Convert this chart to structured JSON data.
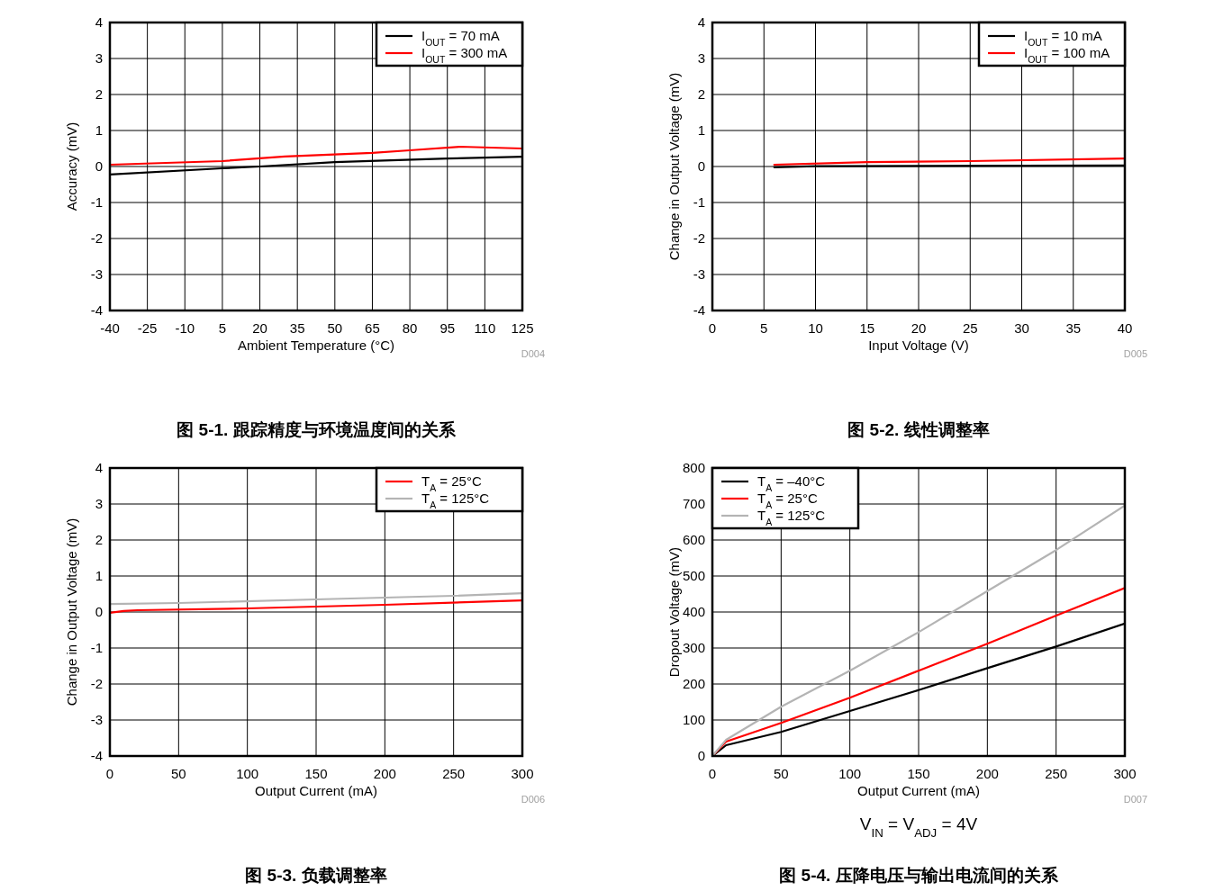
{
  "chart_data": [
    {
      "type": "line",
      "title": "图 5-1. 跟踪精度与环境温度间的关系",
      "xlabel": "Ambient Temperature (°C)",
      "ylabel": "Accuracy (mV)",
      "annotations": [
        "D004"
      ],
      "xlim": [
        -40,
        125
      ],
      "xticks": [
        -40,
        -25,
        -10,
        5,
        20,
        35,
        50,
        65,
        80,
        95,
        110,
        125
      ],
      "ylim": [
        -4,
        4
      ],
      "yticks": [
        -4,
        -3,
        -2,
        -1,
        0,
        1,
        2,
        3,
        4
      ],
      "grid": true,
      "legend": "top right",
      "series": [
        {
          "name": "I$_{OUT}$ = 70 mA",
          "color": "#000000",
          "x": [
            -40,
            5,
            20,
            50,
            95,
            125
          ],
          "values": [
            -0.22,
            -0.05,
            0.0,
            0.12,
            0.22,
            0.27
          ]
        },
        {
          "name": "I$_{OUT}$ = 300 mA",
          "color": "#ff0000",
          "x": [
            -40,
            5,
            30,
            65,
            80,
            100,
            125
          ],
          "values": [
            0.05,
            0.15,
            0.28,
            0.38,
            0.45,
            0.55,
            0.5
          ]
        }
      ]
    },
    {
      "type": "line",
      "title": "图 5-2. 线性调整率",
      "xlabel": "Input Voltage (V)",
      "ylabel": "Change in Output Voltage (mV)",
      "annotations": [
        "D005"
      ],
      "xlim": [
        0,
        40
      ],
      "xticks": [
        0,
        5,
        10,
        15,
        20,
        25,
        30,
        35,
        40
      ],
      "ylim": [
        -4,
        4
      ],
      "yticks": [
        -4,
        -3,
        -2,
        -1,
        0,
        1,
        2,
        3,
        4
      ],
      "grid": true,
      "legend": "top right",
      "series": [
        {
          "name": "I$_{OUT}$ = 10 mA",
          "color": "#000000",
          "x": [
            6,
            10,
            40
          ],
          "values": [
            -0.02,
            0.01,
            0.03
          ]
        },
        {
          "name": "I$_{OUT}$ = 100 mA",
          "color": "#ff0000",
          "x": [
            6,
            15,
            25,
            40
          ],
          "values": [
            0.05,
            0.12,
            0.15,
            0.22
          ]
        }
      ]
    },
    {
      "type": "line",
      "title": "图 5-3. 负载调整率",
      "xlabel": "Output Current (mA)",
      "ylabel": "Change in Output Voltage (mV)",
      "annotations": [
        "D006"
      ],
      "xlim": [
        0,
        300
      ],
      "xticks": [
        0,
        50,
        100,
        150,
        200,
        250,
        300
      ],
      "ylim": [
        -4,
        4
      ],
      "yticks": [
        -4,
        -3,
        -2,
        -1,
        0,
        1,
        2,
        3,
        4
      ],
      "grid": true,
      "legend": "top right",
      "series": [
        {
          "name": "T$_{A}$ = 25°C",
          "color": "#ff0000",
          "x": [
            0,
            10,
            20,
            100,
            200,
            300
          ],
          "values": [
            -0.02,
            0.03,
            0.05,
            0.1,
            0.2,
            0.32
          ]
        },
        {
          "name": "T$_{A}$ = 125°C",
          "color": "#b4b4b4",
          "x": [
            0,
            50,
            150,
            250,
            300
          ],
          "values": [
            0.22,
            0.25,
            0.35,
            0.45,
            0.52
          ]
        }
      ]
    },
    {
      "type": "line",
      "title": "图 5-4. 压降电压与输出电流间的关系",
      "xlabel": "Output Current (mA)",
      "ylabel": "Dropout Voltage (mV)",
      "annotations": [
        "D007",
        "V$_{IN}$ = V$_{ADJ}$ = 4V"
      ],
      "xlim": [
        0,
        300
      ],
      "xticks": [
        0,
        50,
        100,
        150,
        200,
        250,
        300
      ],
      "ylim": [
        0,
        800
      ],
      "yticks": [
        0,
        100,
        200,
        300,
        400,
        500,
        600,
        700,
        800
      ],
      "grid": true,
      "legend": "top left",
      "series": [
        {
          "name": "T$_{A}$ = –40°C",
          "color": "#000000",
          "x": [
            0,
            10,
            50,
            100,
            150,
            200,
            250,
            300
          ],
          "values": [
            0,
            30,
            67,
            125,
            183,
            244,
            304,
            368
          ]
        },
        {
          "name": "T$_{A}$ = 25°C",
          "color": "#ff0000",
          "x": [
            0,
            10,
            50,
            100,
            150,
            200,
            250,
            300
          ],
          "values": [
            0,
            40,
            92,
            162,
            237,
            312,
            390,
            467
          ]
        },
        {
          "name": "T$_{A}$ = 125°C",
          "color": "#b4b4b4",
          "x": [
            0,
            10,
            50,
            100,
            150,
            200,
            250,
            300
          ],
          "values": [
            0,
            45,
            137,
            237,
            344,
            458,
            572,
            696
          ]
        }
      ]
    }
  ]
}
